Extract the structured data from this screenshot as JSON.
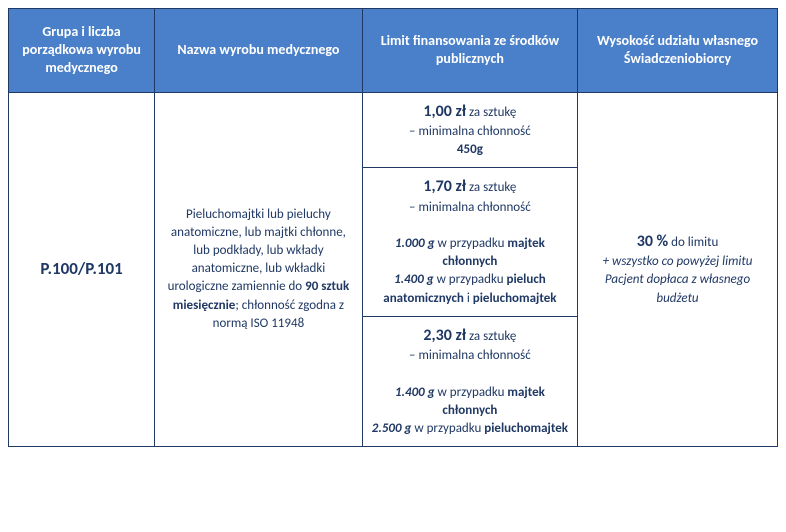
{
  "headers": {
    "col1": "Grupa i liczba porządkowa wyrobu medycznego",
    "col2": "Nazwa wyrobu medycznego",
    "col3": "Limit finansowania ze środków publicznych",
    "col4": "Wysokość udziału własnego Świadczeniobiorcy"
  },
  "product": {
    "code": "P.100/P.101",
    "name_part1": "Pieluchomajtki lub pieluchy anatomiczne, lub majtki chłonne, lub podkłady, lub wkłady anatomiczne, lub wkładki urologiczne zamiennie do ",
    "name_bold": "90 sztuk miesięcznie",
    "name_part2": "; chłonność zgodna z normą ISO 11948"
  },
  "limits": {
    "tier1": {
      "price": "1,00 zł",
      "per": " za sztukę",
      "min_label": "– minimalna chłonność",
      "min_value": "450g"
    },
    "tier2": {
      "price": "1,70 zł",
      "per": " za sztukę",
      "min_label": "– minimalna chłonność",
      "line1_val": "1.000 g",
      "line1_txt": " w przypadku ",
      "line1_bold": "majtek chłonnych",
      "line2_val": "1.400 g",
      "line2_txt": " w przypadku ",
      "line2_bold": "pieluch anatomicznych",
      "line2_and": " i ",
      "line2_bold2": "pieluchomajtek"
    },
    "tier3": {
      "price": "2,30 zł",
      "per": " za sztukę",
      "min_label": "– minimalna chłonność",
      "line1_val": "1.400 g",
      "line1_txt": " w przypadku ",
      "line1_bold": "majtek chłonnych",
      "line2_val": "2.500 g",
      "line2_txt": " w przypadku ",
      "line2_bold": "pieluchomajtek"
    }
  },
  "share": {
    "pct": "30 %",
    "pct_txt": " do limitu",
    "note": "+ wszystko co powyżej limitu Pacjent dopłaca z własnego budżetu"
  }
}
